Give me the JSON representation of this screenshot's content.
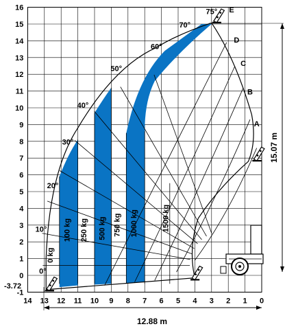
{
  "chart_data": {
    "type": "load-chart",
    "x_ticks": [
      "14",
      "13",
      "12",
      "11",
      "10",
      "9",
      "8",
      "7",
      "6",
      "5",
      "4",
      "3",
      "2",
      "1",
      "0"
    ],
    "y_ticks": [
      "16",
      "15",
      "14",
      "13",
      "12",
      "11",
      "10",
      "9",
      "8",
      "7",
      "6",
      "5",
      "4",
      "3",
      "2",
      "1",
      "0",
      "-1"
    ],
    "angles": [
      {
        "label": "0°",
        "deg": 0
      },
      {
        "label": "10°",
        "deg": 10
      },
      {
        "label": "20°",
        "deg": 20
      },
      {
        "label": "30°",
        "deg": 30
      },
      {
        "label": "40°",
        "deg": 40
      },
      {
        "label": "50°",
        "deg": 50
      },
      {
        "label": "60°",
        "deg": 60
      },
      {
        "label": "70°",
        "deg": 70
      },
      {
        "label": "75°",
        "deg": 75
      }
    ],
    "extensions": [
      "A",
      "B",
      "C",
      "D",
      "E"
    ],
    "loads": [
      "0 kg",
      "100 kg",
      "250 kg",
      "500 kg",
      "750 kg",
      "1000 kg",
      "1500 kg"
    ],
    "min_height_label": "-3.72",
    "max_height_label": "15.07 m",
    "max_reach_label": "12.88 m",
    "colors": {
      "band": "#0a74c4",
      "grid": "#000000",
      "background": "#ffffff"
    }
  }
}
